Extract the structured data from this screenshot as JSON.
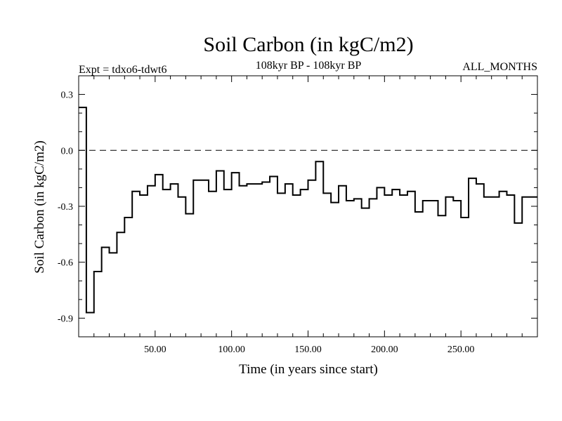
{
  "chart_data": {
    "type": "line",
    "title": "Soil Carbon (in kgC/m2)",
    "subtitle_left": "Expt = tdxo6-tdwt6",
    "subtitle_center": "108kyr BP - 108kyr BP",
    "subtitle_right": "ALL_MONTHS",
    "xlabel": "Time (in years since start)",
    "ylabel": "Soil Carbon (in kgC/m2)",
    "xlim": [
      0,
      300
    ],
    "ylim": [
      -1.0,
      0.4
    ],
    "x_ticks": [
      50,
      100,
      150,
      200,
      250
    ],
    "x_tick_labels": [
      "50.00",
      "100.00",
      "150.00",
      "200.00",
      "250.00"
    ],
    "y_ticks": [
      0.3,
      0.0,
      -0.3,
      -0.6,
      -0.9
    ],
    "y_tick_labels": [
      "0.3",
      "0.0",
      "-0.3",
      "-0.6",
      "-0.9"
    ],
    "reference_line": 0.0,
    "grid": false,
    "step": true,
    "series": [
      {
        "x": [
          0,
          5,
          10,
          15,
          20,
          25,
          30,
          35,
          40,
          45,
          50,
          55,
          60,
          65,
          70,
          75,
          80,
          85,
          90,
          95,
          100,
          105,
          110,
          115,
          120,
          125,
          130,
          135,
          140,
          145,
          150,
          155,
          160,
          165,
          170,
          175,
          180,
          185,
          190,
          195,
          200,
          205,
          210,
          215,
          220,
          225,
          230,
          235,
          240,
          245,
          250,
          255,
          260,
          265,
          270,
          275,
          280,
          285,
          290,
          295
        ],
        "values": [
          0.23,
          -0.87,
          -0.65,
          -0.52,
          -0.55,
          -0.44,
          -0.36,
          -0.22,
          -0.24,
          -0.19,
          -0.13,
          -0.21,
          -0.18,
          -0.25,
          -0.34,
          -0.16,
          -0.16,
          -0.22,
          -0.11,
          -0.21,
          -0.12,
          -0.19,
          -0.18,
          -0.18,
          -0.17,
          -0.14,
          -0.23,
          -0.18,
          -0.24,
          -0.21,
          -0.16,
          -0.06,
          -0.23,
          -0.28,
          -0.19,
          -0.27,
          -0.26,
          -0.31,
          -0.26,
          -0.2,
          -0.24,
          -0.21,
          -0.24,
          -0.22,
          -0.33,
          -0.27,
          -0.27,
          -0.35,
          -0.25,
          -0.27,
          -0.36,
          -0.15,
          -0.18,
          -0.25,
          -0.25,
          -0.22,
          -0.24,
          -0.39,
          -0.25,
          -0.25
        ]
      }
    ]
  }
}
